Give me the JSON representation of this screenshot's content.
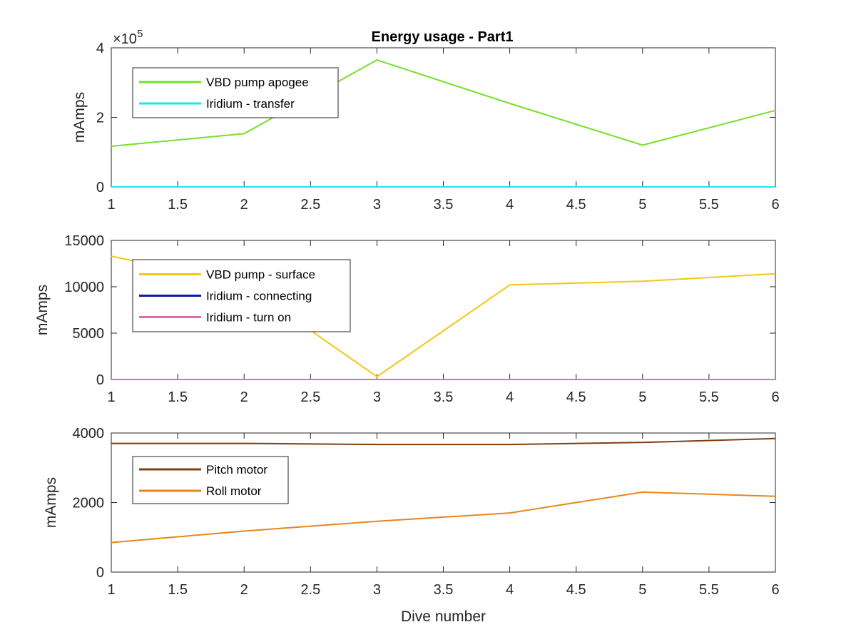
{
  "title": "Energy usage - Part1",
  "chart_data": [
    {
      "type": "line",
      "x": [
        1,
        2,
        3,
        4,
        5,
        6
      ],
      "xlim": [
        1,
        6
      ],
      "xticks": [
        1,
        1.5,
        2,
        2.5,
        3,
        3.5,
        4,
        4.5,
        5,
        5.5,
        6
      ],
      "ylim": [
        0,
        400000
      ],
      "yticks": [
        0,
        200000,
        400000
      ],
      "ytick_labels": [
        "0",
        "2",
        "4"
      ],
      "y_exponent": "×10",
      "y_exponent_power": "5",
      "ylabel": "mAmps",
      "legend_position": "top-left",
      "series": [
        {
          "name": "VBD pump apogee",
          "color": "#76E029",
          "values": [
            117000,
            153000,
            365000,
            240000,
            120000,
            220000
          ]
        },
        {
          "name": "Iridium - transfer",
          "color": "#1DE6F0",
          "values": [
            0,
            0,
            0,
            0,
            0,
            0
          ]
        }
      ]
    },
    {
      "type": "line",
      "x": [
        1,
        2,
        3,
        4,
        5,
        6
      ],
      "xlim": [
        1,
        6
      ],
      "xticks": [
        1,
        1.5,
        2,
        2.5,
        3,
        3.5,
        4,
        4.5,
        5,
        5.5,
        6
      ],
      "ylim": [
        0,
        15000
      ],
      "yticks": [
        0,
        5000,
        10000,
        15000
      ],
      "ytick_labels": [
        "0",
        "5000",
        "10000",
        "15000"
      ],
      "ylabel": "mAmps",
      "legend_position": "top-left",
      "series": [
        {
          "name": "VBD pump - surface",
          "color": "#F2C714",
          "values": [
            13300,
            10300,
            300,
            10200,
            10600,
            11400
          ]
        },
        {
          "name": "Iridium - connecting",
          "color": "#0C1AA8",
          "values": [
            0,
            0,
            0,
            0,
            0,
            0
          ]
        },
        {
          "name": "Iridium - turn on",
          "color": "#E26BB5",
          "values": [
            0,
            0,
            0,
            0,
            0,
            0
          ]
        }
      ]
    },
    {
      "type": "line",
      "x": [
        1,
        2,
        3,
        4,
        5,
        6
      ],
      "xlim": [
        1,
        6
      ],
      "xticks": [
        1,
        1.5,
        2,
        2.5,
        3,
        3.5,
        4,
        4.5,
        5,
        5.5,
        6
      ],
      "ylim": [
        0,
        4000
      ],
      "yticks": [
        0,
        2000,
        4000
      ],
      "ytick_labels": [
        "0",
        "2000",
        "4000"
      ],
      "ylabel": "mAmps",
      "xlabel": "Dive number",
      "legend_position": "top-left",
      "series": [
        {
          "name": "Pitch motor",
          "color": "#7E3F12",
          "values": [
            3700,
            3700,
            3670,
            3670,
            3730,
            3840
          ]
        },
        {
          "name": "Roll motor",
          "color": "#E8861A",
          "values": [
            850,
            1180,
            1460,
            1700,
            2300,
            2180
          ]
        }
      ]
    }
  ]
}
